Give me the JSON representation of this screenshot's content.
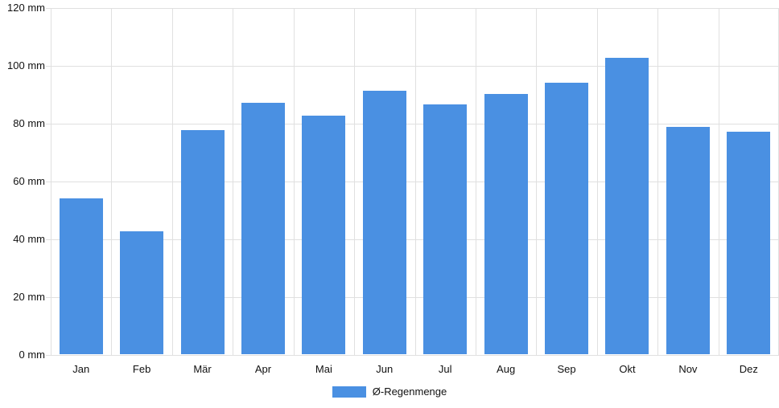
{
  "chart_data": {
    "type": "bar",
    "title": "",
    "categories": [
      "Jan",
      "Feb",
      "Mär",
      "Apr",
      "Mai",
      "Jun",
      "Jul",
      "Aug",
      "Sep",
      "Okt",
      "Nov",
      "Dez"
    ],
    "series": [
      {
        "name": "Ø-Regenmenge",
        "values": [
          54,
          42.5,
          77.5,
          87,
          82.5,
          91,
          86.5,
          90,
          94,
          102.5,
          78.5,
          77
        ]
      }
    ],
    "xlabel": "",
    "ylabel": "",
    "y_unit": "mm",
    "ylim": [
      0,
      120
    ],
    "y_ticks": [
      {
        "value": 0,
        "label": "0 mm"
      },
      {
        "value": 20,
        "label": "20 mm"
      },
      {
        "value": 40,
        "label": "40 mm"
      },
      {
        "value": 60,
        "label": "60 mm"
      },
      {
        "value": 80,
        "label": "80 mm"
      },
      {
        "value": 100,
        "label": "100 mm"
      },
      {
        "value": 120,
        "label": "120 mm"
      }
    ],
    "grid": true,
    "legend_position": "bottom-center",
    "legend_label": "Ø-Regenmenge",
    "colors": {
      "bar": "#4A90E2",
      "gridline": "#e0e0e0",
      "text": "#111111",
      "background": "#ffffff"
    }
  }
}
